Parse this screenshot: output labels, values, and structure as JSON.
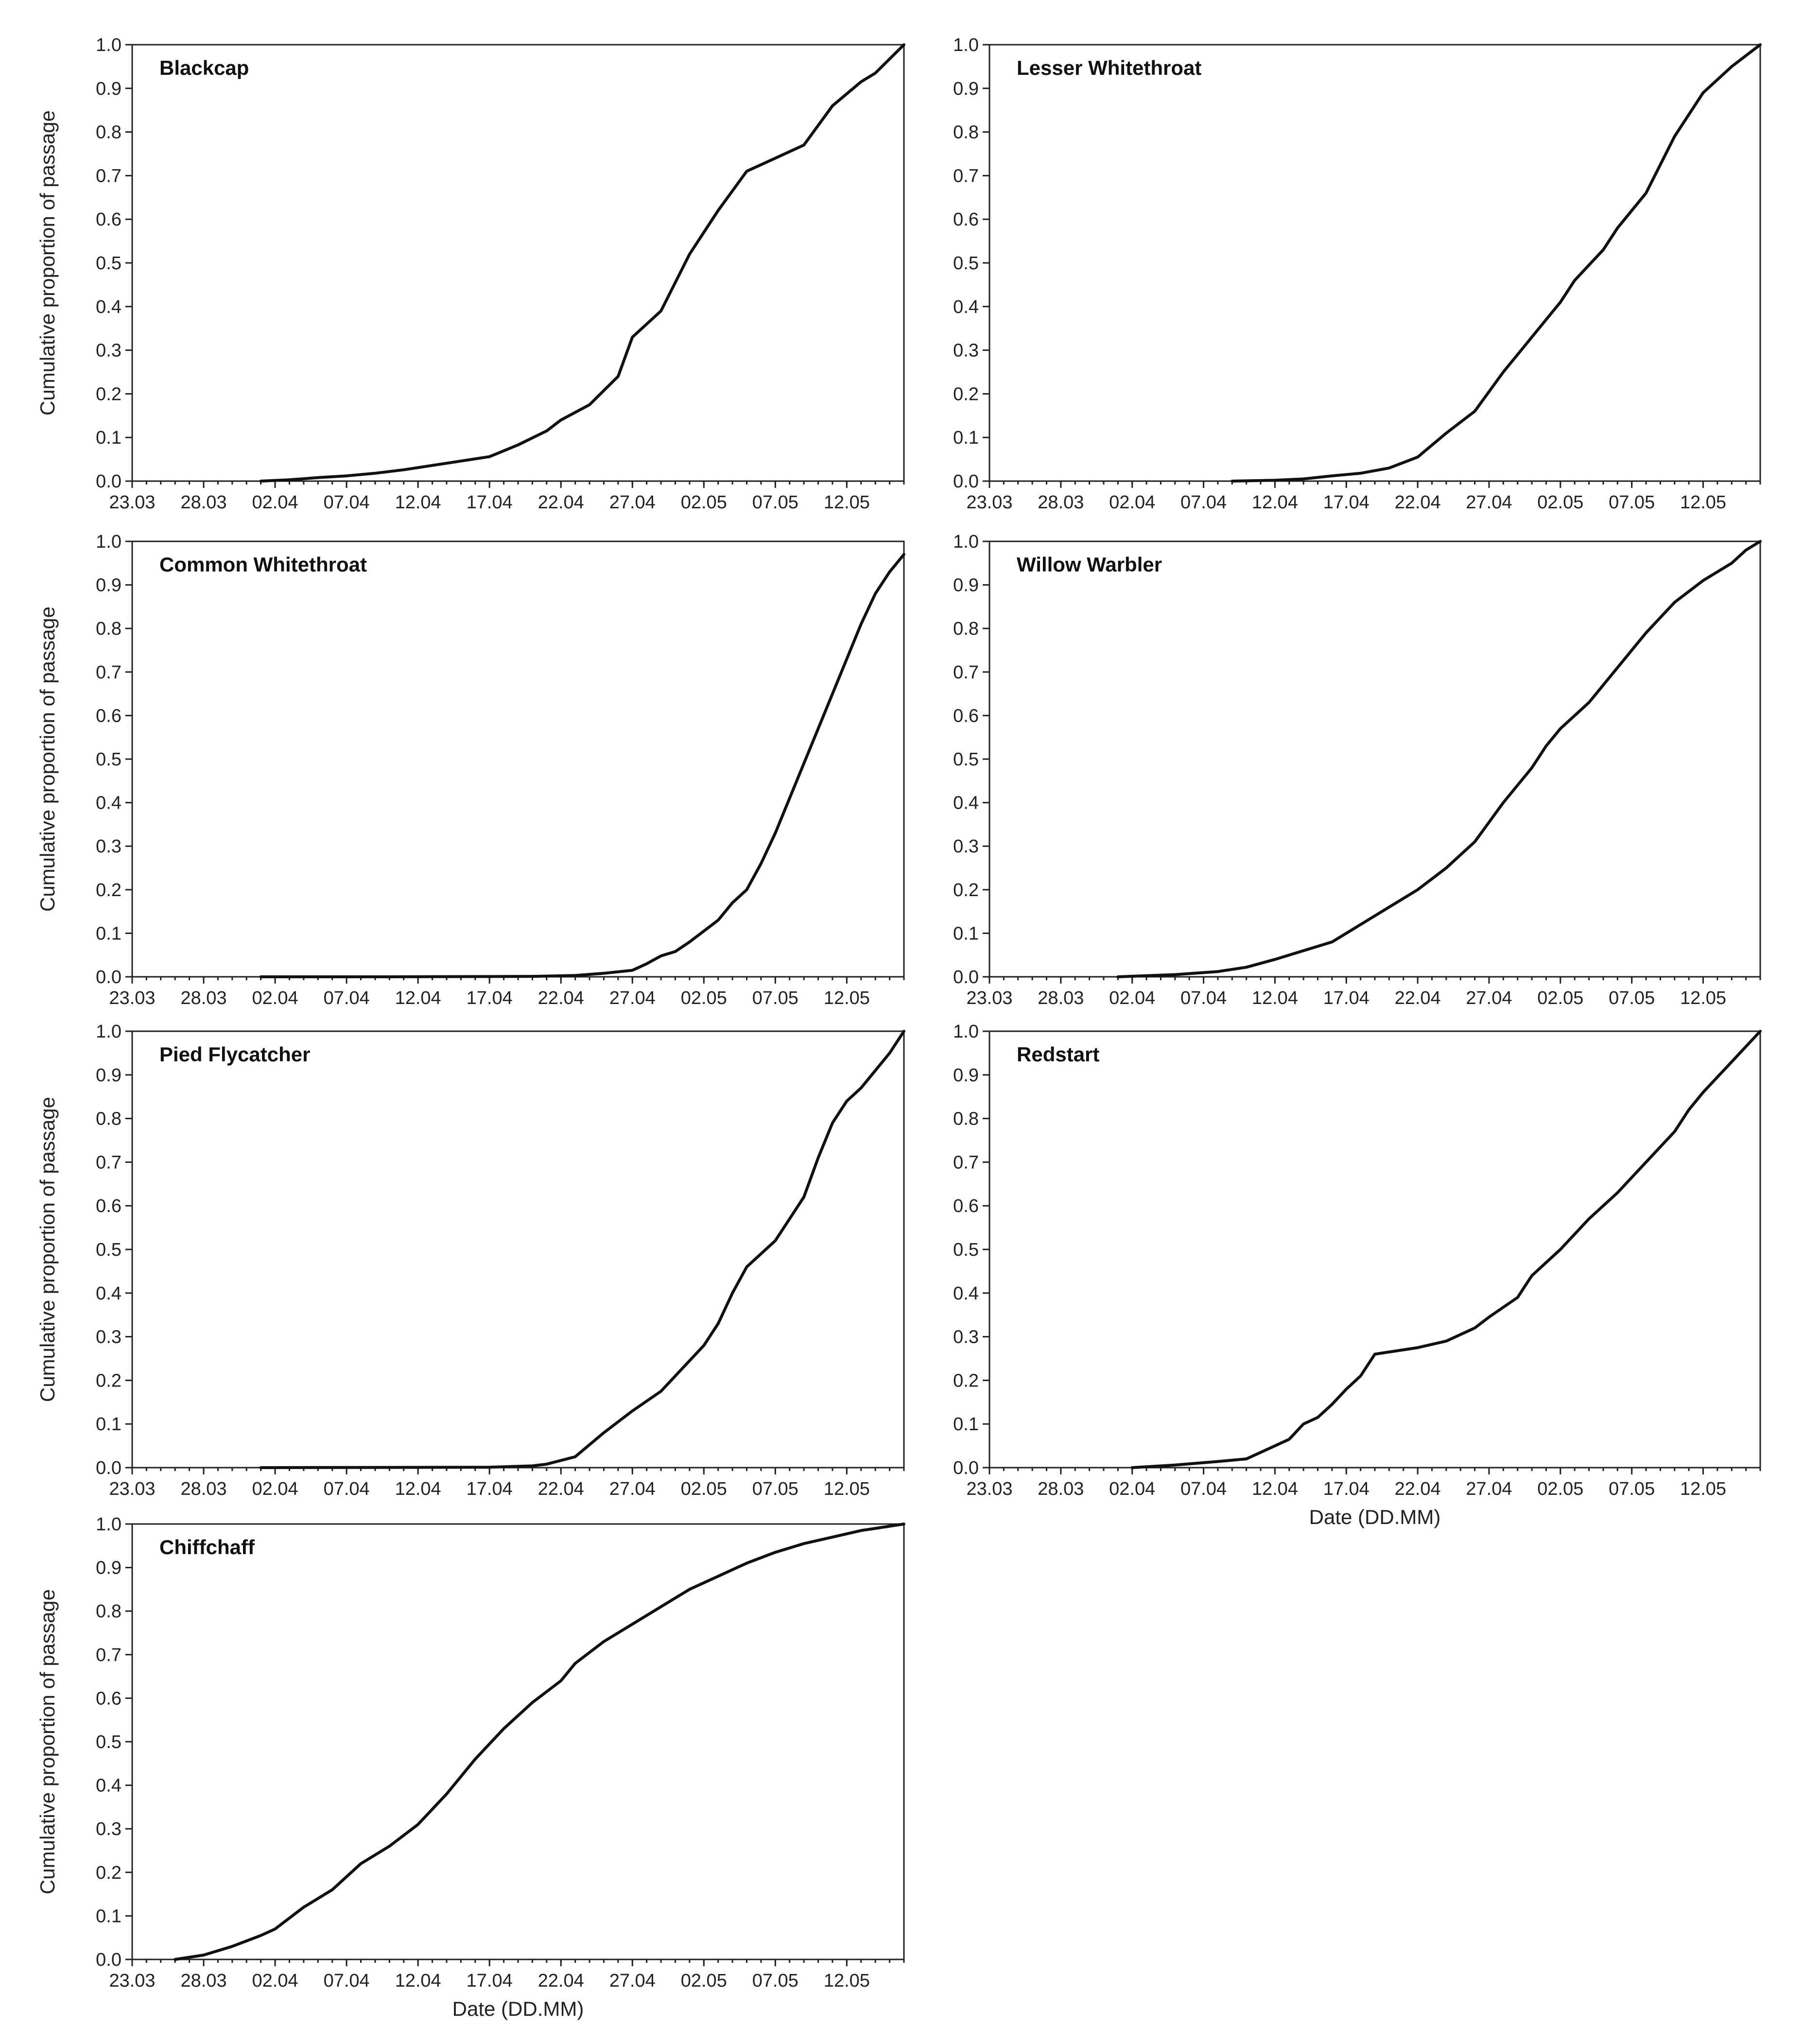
{
  "chart_data": [
    {
      "type": "line",
      "title": "Blackcap",
      "xlabel": "",
      "ylabel": "Cumulative proportion of passage",
      "x_tick_labels": [
        "23.03",
        "28.03",
        "02.04",
        "07.04",
        "12.04",
        "17.04",
        "22.04",
        "27.04",
        "02.05",
        "07.05",
        "12.05"
      ],
      "y_tick_labels": [
        "0.0",
        "0.1",
        "0.2",
        "0.3",
        "0.4",
        "0.5",
        "0.6",
        "0.7",
        "0.8",
        "0.9",
        "1.0"
      ],
      "ylim": [
        0,
        1
      ],
      "xlim": [
        "23.03",
        "16.05"
      ],
      "series": [
        {
          "x": [
            "01.04",
            "03.04",
            "05.04",
            "07.04",
            "09.04",
            "11.04",
            "13.04",
            "15.04",
            "17.04",
            "19.04",
            "21.04",
            "22.04",
            "24.04",
            "26.04",
            "27.04",
            "29.04",
            "01.05",
            "03.05",
            "05.05",
            "07.05",
            "09.05",
            "11.05",
            "13.05",
            "14.05",
            "16.05"
          ],
          "values": [
            0.0,
            0.003,
            0.008,
            0.012,
            0.018,
            0.026,
            0.036,
            0.046,
            0.056,
            0.083,
            0.115,
            0.14,
            0.175,
            0.24,
            0.33,
            0.39,
            0.52,
            0.62,
            0.71,
            0.74,
            0.77,
            0.86,
            0.915,
            0.935,
            1.0
          ]
        }
      ]
    },
    {
      "type": "line",
      "title": "Lesser Whitethroat",
      "xlabel": "",
      "ylabel": "",
      "x_tick_labels": [
        "23.03",
        "28.03",
        "02.04",
        "07.04",
        "12.04",
        "17.04",
        "22.04",
        "27.04",
        "02.05",
        "07.05",
        "12.05"
      ],
      "y_tick_labels": [
        "0.0",
        "0.1",
        "0.2",
        "0.3",
        "0.4",
        "0.5",
        "0.6",
        "0.7",
        "0.8",
        "0.9",
        "1.0"
      ],
      "ylim": [
        0,
        1
      ],
      "xlim": [
        "23.03",
        "16.05"
      ],
      "series": [
        {
          "x": [
            "09.04",
            "12.04",
            "14.04",
            "16.04",
            "18.04",
            "20.04",
            "22.04",
            "24.04",
            "26.04",
            "28.04",
            "29.04",
            "01.05",
            "02.05",
            "03.05",
            "05.05",
            "06.05",
            "07.05",
            "08.05",
            "10.05",
            "12.05",
            "14.05",
            "16.05"
          ],
          "values": [
            0.0,
            0.002,
            0.005,
            0.012,
            0.018,
            0.03,
            0.055,
            0.11,
            0.16,
            0.25,
            0.29,
            0.37,
            0.41,
            0.46,
            0.53,
            0.58,
            0.62,
            0.66,
            0.79,
            0.89,
            0.95,
            1.0
          ]
        }
      ]
    },
    {
      "type": "line",
      "title": "Common Whitethroat",
      "xlabel": "",
      "ylabel": "Cumulative proportion of passage",
      "x_tick_labels": [
        "23.03",
        "28.03",
        "02.04",
        "07.04",
        "12.04",
        "17.04",
        "22.04",
        "27.04",
        "02.05",
        "07.05",
        "12.05"
      ],
      "y_tick_labels": [
        "0.0",
        "0.1",
        "0.2",
        "0.3",
        "0.4",
        "0.5",
        "0.6",
        "0.7",
        "0.8",
        "0.9",
        "1.0"
      ],
      "ylim": [
        0,
        1
      ],
      "xlim": [
        "23.03",
        "16.05"
      ],
      "series": [
        {
          "x": [
            "01.04",
            "10.04",
            "20.04",
            "23.04",
            "25.04",
            "27.04",
            "28.04",
            "29.04",
            "30.04",
            "01.05",
            "02.05",
            "03.05",
            "04.05",
            "05.05",
            "06.05",
            "07.05",
            "08.05",
            "09.05",
            "10.05",
            "11.05",
            "12.05",
            "13.05",
            "14.05",
            "15.05",
            "16.05"
          ],
          "values": [
            0.0,
            0.0,
            0.001,
            0.003,
            0.008,
            0.015,
            0.03,
            0.048,
            0.058,
            0.08,
            0.105,
            0.13,
            0.17,
            0.2,
            0.26,
            0.33,
            0.41,
            0.49,
            0.57,
            0.65,
            0.73,
            0.81,
            0.88,
            0.93,
            0.97
          ]
        }
      ]
    },
    {
      "type": "line",
      "title": "Willow Warbler",
      "xlabel": "",
      "ylabel": "",
      "x_tick_labels": [
        "23.03",
        "28.03",
        "02.04",
        "07.04",
        "12.04",
        "17.04",
        "22.04",
        "27.04",
        "02.05",
        "07.05",
        "12.05"
      ],
      "y_tick_labels": [
        "0.0",
        "0.1",
        "0.2",
        "0.3",
        "0.4",
        "0.5",
        "0.6",
        "0.7",
        "0.8",
        "0.9",
        "1.0"
      ],
      "ylim": [
        0,
        1
      ],
      "xlim": [
        "23.03",
        "16.05"
      ],
      "series": [
        {
          "x": [
            "01.04",
            "05.04",
            "08.04",
            "10.04",
            "12.04",
            "13.04",
            "14.04",
            "16.04",
            "18.04",
            "20.04",
            "22.04",
            "24.04",
            "26.04",
            "28.04",
            "30.04",
            "01.05",
            "02.05",
            "04.05",
            "06.05",
            "08.05",
            "10.05",
            "12.05",
            "14.05",
            "15.05",
            "16.05"
          ],
          "values": [
            0.0,
            0.005,
            0.012,
            0.022,
            0.04,
            0.05,
            0.06,
            0.08,
            0.12,
            0.16,
            0.2,
            0.25,
            0.31,
            0.4,
            0.48,
            0.53,
            0.57,
            0.63,
            0.71,
            0.79,
            0.86,
            0.91,
            0.95,
            0.98,
            1.0
          ]
        }
      ]
    },
    {
      "type": "line",
      "title": "Pied Flycatcher",
      "xlabel": "",
      "ylabel": "Cumulative proportion of passage",
      "x_tick_labels": [
        "23.03",
        "28.03",
        "02.04",
        "07.04",
        "12.04",
        "17.04",
        "22.04",
        "27.04",
        "02.05",
        "07.05",
        "12.05"
      ],
      "y_tick_labels": [
        "0.0",
        "0.1",
        "0.2",
        "0.3",
        "0.4",
        "0.5",
        "0.6",
        "0.7",
        "0.8",
        "0.9",
        "1.0"
      ],
      "ylim": [
        0,
        1
      ],
      "xlim": [
        "23.03",
        "16.05"
      ],
      "series": [
        {
          "x": [
            "01.04",
            "17.04",
            "20.04",
            "21.04",
            "23.04",
            "25.04",
            "27.04",
            "29.04",
            "30.04",
            "02.05",
            "03.05",
            "04.05",
            "05.05",
            "07.05",
            "08.05",
            "09.05",
            "10.05",
            "11.05",
            "12.05",
            "13.05",
            "14.05",
            "15.05",
            "16.05"
          ],
          "values": [
            0.0,
            0.001,
            0.004,
            0.008,
            0.025,
            0.08,
            0.13,
            0.175,
            0.21,
            0.28,
            0.33,
            0.4,
            0.46,
            0.52,
            0.57,
            0.62,
            0.71,
            0.79,
            0.84,
            0.87,
            0.91,
            0.95,
            1.0
          ]
        }
      ]
    },
    {
      "type": "line",
      "title": "Redstart",
      "xlabel": "Date (DD.MM)",
      "ylabel": "",
      "x_tick_labels": [
        "23.03",
        "28.03",
        "02.04",
        "07.04",
        "12.04",
        "17.04",
        "22.04",
        "27.04",
        "02.05",
        "07.05",
        "12.05"
      ],
      "y_tick_labels": [
        "0.0",
        "0.1",
        "0.2",
        "0.3",
        "0.4",
        "0.5",
        "0.6",
        "0.7",
        "0.8",
        "0.9",
        "1.0"
      ],
      "ylim": [
        0,
        1
      ],
      "xlim": [
        "23.03",
        "16.05"
      ],
      "series": [
        {
          "x": [
            "02.04",
            "05.04",
            "08.04",
            "10.04",
            "11.04",
            "12.04",
            "13.04",
            "14.04",
            "15.04",
            "16.04",
            "17.04",
            "18.04",
            "19.04",
            "20.04",
            "22.04",
            "24.04",
            "26.04",
            "27.04",
            "29.04",
            "30.04",
            "02.05",
            "04.05",
            "06.05",
            "08.05",
            "10.05",
            "11.05",
            "12.05",
            "14.05",
            "16.05"
          ],
          "values": [
            0.0,
            0.006,
            0.014,
            0.02,
            0.035,
            0.05,
            0.065,
            0.1,
            0.115,
            0.145,
            0.18,
            0.21,
            0.26,
            0.265,
            0.275,
            0.29,
            0.32,
            0.345,
            0.39,
            0.44,
            0.5,
            0.57,
            0.63,
            0.7,
            0.77,
            0.82,
            0.86,
            0.93,
            1.0
          ]
        }
      ]
    },
    {
      "type": "line",
      "title": "Chiffchaff",
      "xlabel": "Date (DD.MM)",
      "ylabel": "Cumulative proportion of passage",
      "x_tick_labels": [
        "23.03",
        "28.03",
        "02.04",
        "07.04",
        "12.04",
        "17.04",
        "22.04",
        "27.04",
        "02.05",
        "07.05",
        "12.05"
      ],
      "y_tick_labels": [
        "0.0",
        "0.1",
        "0.2",
        "0.3",
        "0.4",
        "0.5",
        "0.6",
        "0.7",
        "0.8",
        "0.9",
        "1.0"
      ],
      "ylim": [
        0,
        1
      ],
      "xlim": [
        "23.03",
        "16.05"
      ],
      "series": [
        {
          "x": [
            "26.03",
            "28.03",
            "30.03",
            "01.04",
            "02.04",
            "04.04",
            "06.04",
            "08.04",
            "10.04",
            "12.04",
            "14.04",
            "16.04",
            "18.04",
            "20.04",
            "22.04",
            "23.04",
            "25.04",
            "27.04",
            "29.04",
            "01.05",
            "03.05",
            "05.05",
            "07.05",
            "09.05",
            "11.05",
            "13.05",
            "14.05",
            "16.05"
          ],
          "values": [
            0.0,
            0.01,
            0.03,
            0.055,
            0.07,
            0.12,
            0.16,
            0.22,
            0.26,
            0.31,
            0.38,
            0.46,
            0.53,
            0.59,
            0.64,
            0.68,
            0.73,
            0.77,
            0.81,
            0.85,
            0.88,
            0.91,
            0.935,
            0.955,
            0.97,
            0.985,
            0.99,
            1.0
          ]
        }
      ]
    }
  ]
}
